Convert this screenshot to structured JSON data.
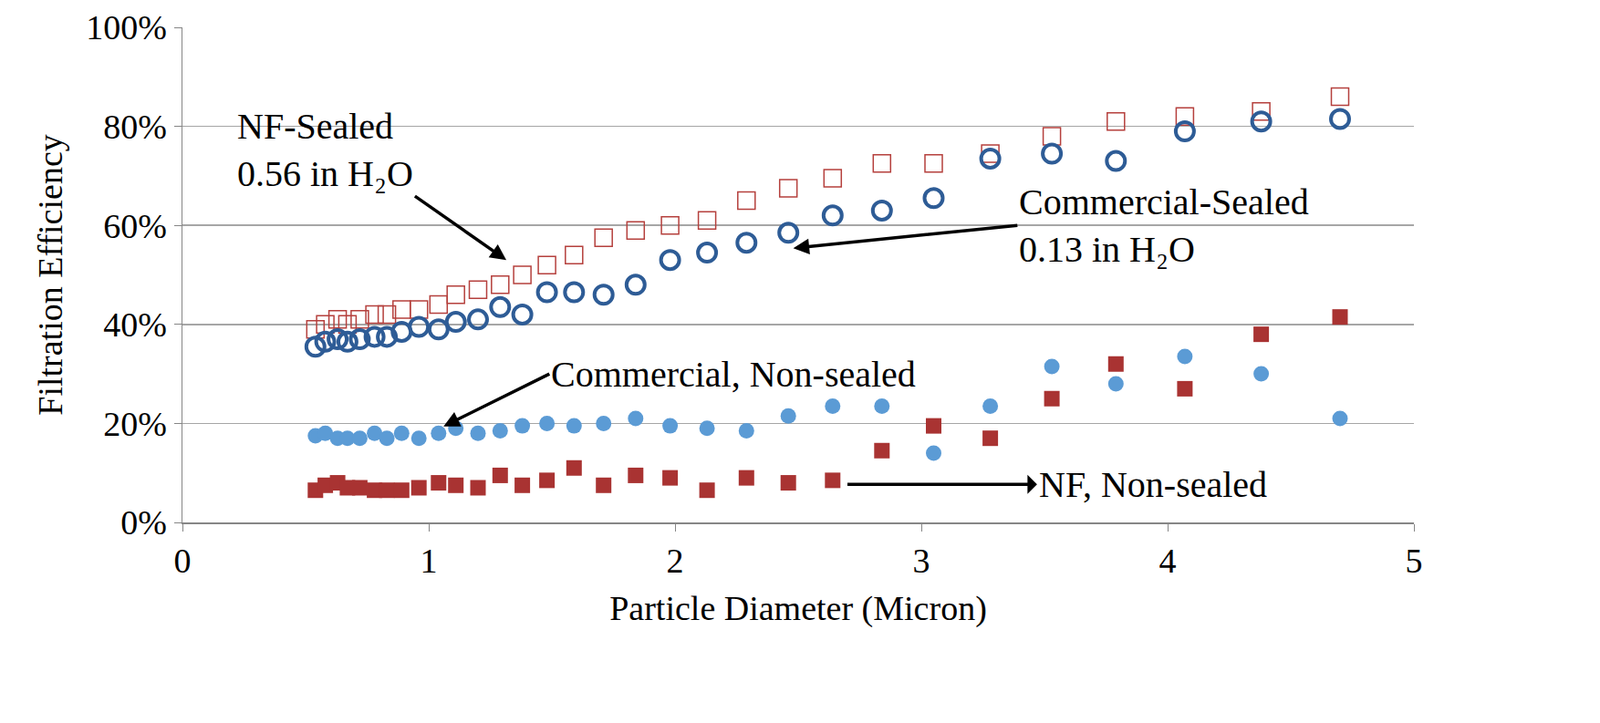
{
  "chart_data": {
    "type": "scatter",
    "x_label": "Particle Diameter (Micron)",
    "y_label": "Filtration Efficiency",
    "x": [
      0.54,
      0.58,
      0.63,
      0.67,
      0.72,
      0.78,
      0.83,
      0.89,
      0.96,
      1.04,
      1.11,
      1.2,
      1.29,
      1.38,
      1.48,
      1.59,
      1.71,
      1.84,
      1.98,
      2.13,
      2.29,
      2.46,
      2.64,
      2.84,
      3.05,
      3.28,
      3.53,
      3.79,
      4.07,
      4.38,
      4.7
    ],
    "series": [
      {
        "color": "#b5403d",
        "marker": "square-open",
        "values": [
          39,
          40,
          41,
          40,
          41,
          42,
          42,
          43,
          43,
          44,
          46,
          47,
          48,
          50,
          52,
          54,
          57.5,
          59,
          60,
          61,
          65,
          67.5,
          69.5,
          72.5,
          72.5,
          74.5,
          78,
          81,
          82,
          83,
          86
        ]
      },
      {
        "color": "#2e5c96",
        "marker": "circle-open",
        "values": [
          35.5,
          36.5,
          37,
          36.5,
          37,
          37.5,
          37.5,
          38.5,
          39.5,
          39,
          40.5,
          41,
          43.5,
          42,
          46.5,
          46.5,
          46,
          48,
          53,
          54.5,
          56.5,
          58.5,
          62,
          63,
          65.5,
          73.5,
          74.5,
          73,
          79,
          81,
          81.5
        ]
      },
      {
        "color": "#5b9bd5",
        "marker": "circle",
        "values": [
          17.5,
          18,
          17,
          17,
          17,
          18,
          17,
          18,
          17,
          18,
          19,
          18,
          18.5,
          19.5,
          20,
          19.5,
          20,
          21,
          19.5,
          19,
          18.5,
          21.5,
          23.5,
          23.5,
          14,
          23.5,
          31.5,
          28,
          33.5,
          30,
          21
        ]
      },
      {
        "color": "#a93332",
        "marker": "square",
        "values": [
          6.5,
          7.5,
          8,
          7,
          7,
          6.5,
          6.5,
          6.5,
          7,
          8,
          7.5,
          7,
          9.5,
          7.5,
          8.5,
          11,
          7.5,
          9.5,
          9,
          6.5,
          9,
          8,
          8.5,
          14.5,
          19.5,
          17,
          25,
          32,
          27,
          38,
          41.5
        ]
      }
    ],
    "annotations": [
      {
        "text": "NF-Sealed\n0.56 in H₂O"
      },
      {
        "text": "Commercial-Sealed\n0.13 in H₂O"
      },
      {
        "text": "Commercial, Non-sealed"
      },
      {
        "text": "NF, Non-sealed"
      }
    ],
    "xlim": [
      0,
      5
    ],
    "xticks": [
      0,
      1,
      2,
      3,
      4,
      5
    ],
    "ylim": [
      0,
      100
    ],
    "yticks": [
      {
        "value": 0,
        "label": "0%"
      },
      {
        "value": 20,
        "label": "20%"
      },
      {
        "value": 40,
        "label": "40%"
      },
      {
        "value": 60,
        "label": "60%"
      },
      {
        "value": 80,
        "label": "80%"
      },
      {
        "value": 100,
        "label": "100%"
      }
    ],
    "grid": "y"
  }
}
